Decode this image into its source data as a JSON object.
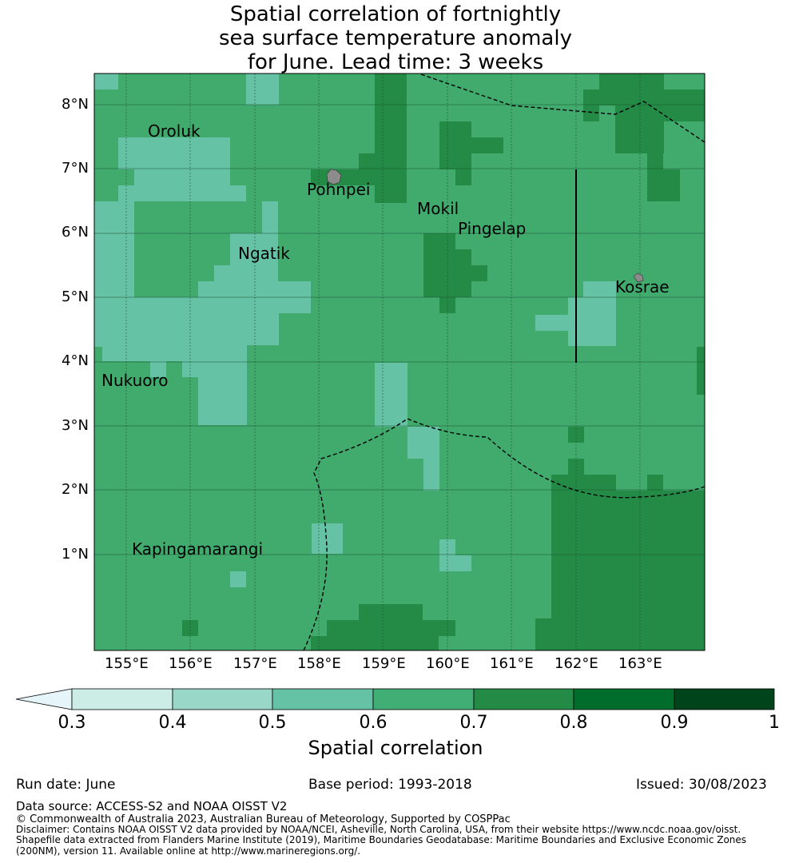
{
  "title_lines": [
    "Spatial correlation of fortnightly",
    "sea surface temperature anomaly",
    "for June. Lead time: 3 weeks"
  ],
  "map": {
    "lat_labels": [
      "8°N",
      "7°N",
      "6°N",
      "5°N",
      "4°N",
      "3°N",
      "2°N",
      "1°N"
    ],
    "lon_labels": [
      "155°E",
      "156°E",
      "157°E",
      "158°E",
      "159°E",
      "160°E",
      "161°E",
      "162°E",
      "163°E"
    ],
    "places": [
      "Oroluk",
      "Pohnpei",
      "Mokil",
      "Pingelap",
      "Ngatik",
      "Kosrae",
      "Nukuoro",
      "Kapingamarangi"
    ],
    "base_color": "#41ab6d",
    "land_color": "#8c8c8c"
  },
  "colorbar": {
    "ticks": [
      "0.3",
      "0.4",
      "0.5",
      "0.6",
      "0.7",
      "0.8",
      "0.9",
      "1"
    ],
    "colors": [
      "#e5f5f9",
      "#ccece6",
      "#99d8c9",
      "#66c2a4",
      "#41ae76",
      "#238b45",
      "#006d2c",
      "#00441b"
    ],
    "label": "Spatial correlation"
  },
  "footer": {
    "run_date": "Run date: June",
    "base_period": "Base period: 1993-2018",
    "issued": "Issued: 30/08/2023",
    "data_source": "Data source: ACCESS-S2 and NOAA OISST V2",
    "copyright": "© Commonwealth of Australia 2023, Australian Bureau of Meteorology, Supported by COSPPac",
    "disclaimer_1": "Disclaimer: Contains NOAA OISST V2 data provided by NOAA/NCEI, Asheville, North Carolina, USA, from their website https://www.ncdc.noaa.gov/oisst.",
    "disclaimer_2": "Shapefile data extracted from Flanders Marine Institute (2019), Maritime Boundaries Geodatabase: Maritime Boundaries and Exclusive Economic Zones",
    "disclaimer_3": "(200NM), version 11. Available online at http://www.marineregions.org/."
  }
}
